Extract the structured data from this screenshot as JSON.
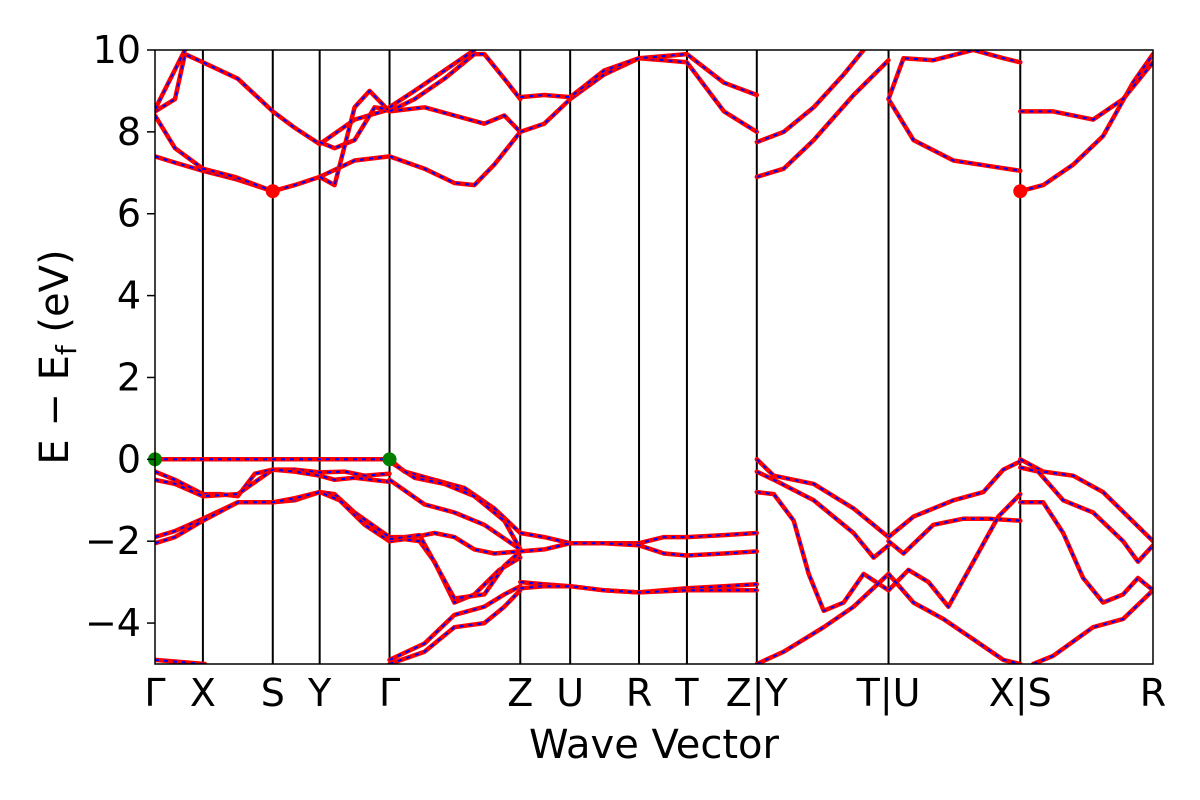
{
  "chart_data": {
    "type": "line",
    "title": "",
    "xlabel": "Wave Vector",
    "ylabel": "E − E",
    "ylabel_sub": "f",
    "ylabel_unit": " (eV)",
    "ylim": [
      -5,
      10
    ],
    "yticks": [
      -4,
      -2,
      0,
      2,
      4,
      6,
      8,
      10
    ],
    "ytick_labels": [
      "−4",
      "−2",
      "0",
      "2",
      "4",
      "6",
      "8",
      "10"
    ],
    "xlim": [
      0,
      1
    ],
    "kpoints": [
      {
        "label": "Γ",
        "pos": 0.0
      },
      {
        "label": "X",
        "pos": 0.048
      },
      {
        "label": "S",
        "pos": 0.118
      },
      {
        "label": "Y",
        "pos": 0.165
      },
      {
        "label": "Γ",
        "pos": 0.235
      },
      {
        "label": "Z",
        "pos": 0.366
      },
      {
        "label": "U",
        "pos": 0.416
      },
      {
        "label": "R",
        "pos": 0.485
      },
      {
        "label": "T",
        "pos": 0.533
      },
      {
        "label": "Z|Y",
        "pos": 0.603
      },
      {
        "label": "T|U",
        "pos": 0.735
      },
      {
        "label": "X|S",
        "pos": 0.867
      },
      {
        "label": "R",
        "pos": 1.0
      }
    ],
    "colors": {
      "band_outer": "#ff0000",
      "band_inner": "#0000ff",
      "vbm": "#008000",
      "cbm": "#ff0000",
      "kline": "#000000"
    },
    "markers": [
      {
        "name": "vbm",
        "x": 0.0,
        "y": 0.0
      },
      {
        "name": "vbm",
        "x": 0.235,
        "y": 0.0
      },
      {
        "name": "cbm",
        "x": 0.118,
        "y": 6.55
      },
      {
        "name": "cbm",
        "x": 0.867,
        "y": 6.55
      }
    ],
    "bands": [
      [
        [
          0,
          0
        ],
        [
          0.02,
          0
        ],
        [
          0.048,
          0
        ],
        [
          0.083,
          0
        ],
        [
          0.118,
          0
        ],
        [
          0.14,
          0
        ],
        [
          0.165,
          0
        ],
        [
          0.2,
          0
        ],
        [
          0.235,
          0
        ]
      ],
      [
        [
          0,
          -0.3
        ],
        [
          0.02,
          -0.5
        ],
        [
          0.048,
          -0.85
        ],
        [
          0.065,
          -0.85
        ],
        [
          0.083,
          -0.9
        ],
        [
          0.1,
          -0.35
        ],
        [
          0.118,
          -0.25
        ],
        [
          0.14,
          -0.25
        ],
        [
          0.165,
          -0.32
        ],
        [
          0.19,
          -0.3
        ],
        [
          0.21,
          -0.4
        ],
        [
          0.235,
          -0.35
        ]
      ],
      [
        [
          0,
          -0.5
        ],
        [
          0.02,
          -0.6
        ],
        [
          0.048,
          -0.9
        ],
        [
          0.083,
          -0.85
        ],
        [
          0.118,
          -0.25
        ],
        [
          0.14,
          -0.3
        ],
        [
          0.165,
          -0.4
        ],
        [
          0.18,
          -0.5
        ],
        [
          0.2,
          -0.45
        ],
        [
          0.235,
          -0.55
        ]
      ],
      [
        [
          0,
          -1.9
        ],
        [
          0.02,
          -1.75
        ],
        [
          0.048,
          -1.45
        ],
        [
          0.083,
          -1.05
        ],
        [
          0.118,
          -1.05
        ],
        [
          0.14,
          -1.0
        ],
        [
          0.165,
          -0.8
        ],
        [
          0.18,
          -0.85
        ],
        [
          0.2,
          -1.3
        ],
        [
          0.235,
          -1.9
        ]
      ],
      [
        [
          0,
          -2.05
        ],
        [
          0.02,
          -1.9
        ],
        [
          0.048,
          -1.5
        ],
        [
          0.083,
          -1.05
        ],
        [
          0.118,
          -1.05
        ],
        [
          0.14,
          -0.95
        ],
        [
          0.165,
          -0.8
        ],
        [
          0.185,
          -1.0
        ],
        [
          0.21,
          -1.6
        ],
        [
          0.235,
          -2.0
        ]
      ],
      [
        [
          0,
          -4.9
        ],
        [
          0.05,
          -5.0
        ]
      ],
      [
        [
          0.235,
          0
        ],
        [
          0.25,
          -0.3
        ],
        [
          0.28,
          -0.5
        ],
        [
          0.31,
          -0.7
        ],
        [
          0.34,
          -1.2
        ],
        [
          0.366,
          -1.8
        ]
      ],
      [
        [
          0.235,
          -0.05
        ],
        [
          0.26,
          -0.45
        ],
        [
          0.29,
          -0.6
        ],
        [
          0.32,
          -0.9
        ],
        [
          0.35,
          -1.5
        ],
        [
          0.366,
          -2.2
        ]
      ],
      [
        [
          0.235,
          -0.5
        ],
        [
          0.27,
          -1.1
        ],
        [
          0.3,
          -1.3
        ],
        [
          0.33,
          -1.6
        ],
        [
          0.366,
          -2.2
        ]
      ],
      [
        [
          0.235,
          -1.9
        ],
        [
          0.26,
          -1.9
        ],
        [
          0.28,
          -1.8
        ],
        [
          0.3,
          -1.9
        ],
        [
          0.32,
          -2.2
        ],
        [
          0.34,
          -2.3
        ],
        [
          0.366,
          -2.25
        ]
      ],
      [
        [
          0.235,
          -2.0
        ],
        [
          0.25,
          -1.95
        ],
        [
          0.265,
          -2.0
        ],
        [
          0.28,
          -2.5
        ],
        [
          0.3,
          -3.5
        ],
        [
          0.32,
          -3.3
        ],
        [
          0.345,
          -2.7
        ],
        [
          0.366,
          -2.4
        ]
      ],
      [
        [
          0.235,
          -1.95
        ],
        [
          0.265,
          -1.85
        ],
        [
          0.3,
          -3.4
        ],
        [
          0.33,
          -3.3
        ],
        [
          0.35,
          -2.6
        ],
        [
          0.366,
          -2.25
        ]
      ],
      [
        [
          0.235,
          -4.9
        ],
        [
          0.27,
          -4.5
        ],
        [
          0.3,
          -3.8
        ],
        [
          0.33,
          -3.6
        ],
        [
          0.35,
          -3.3
        ],
        [
          0.366,
          -3.1
        ]
      ],
      [
        [
          0.235,
          -5.0
        ],
        [
          0.27,
          -4.7
        ],
        [
          0.3,
          -4.1
        ],
        [
          0.33,
          -4.0
        ],
        [
          0.35,
          -3.6
        ],
        [
          0.366,
          -3.2
        ]
      ],
      [
        [
          0.366,
          -1.8
        ],
        [
          0.39,
          -1.9
        ],
        [
          0.416,
          -2.05
        ],
        [
          0.45,
          -2.05
        ],
        [
          0.485,
          -2.05
        ],
        [
          0.51,
          -1.9
        ],
        [
          0.533,
          -1.9
        ],
        [
          0.57,
          -1.85
        ],
        [
          0.603,
          -1.8
        ]
      ],
      [
        [
          0.366,
          -2.25
        ],
        [
          0.39,
          -2.2
        ],
        [
          0.416,
          -2.05
        ],
        [
          0.45,
          -2.05
        ],
        [
          0.485,
          -2.1
        ],
        [
          0.51,
          -2.3
        ],
        [
          0.533,
          -2.35
        ],
        [
          0.57,
          -2.3
        ],
        [
          0.603,
          -2.25
        ]
      ],
      [
        [
          0.366,
          -3.0
        ],
        [
          0.39,
          -3.05
        ],
        [
          0.416,
          -3.1
        ],
        [
          0.45,
          -3.2
        ],
        [
          0.485,
          -3.25
        ],
        [
          0.533,
          -3.15
        ],
        [
          0.57,
          -3.1
        ],
        [
          0.603,
          -3.05
        ]
      ],
      [
        [
          0.366,
          -3.15
        ],
        [
          0.39,
          -3.1
        ],
        [
          0.416,
          -3.1
        ],
        [
          0.45,
          -3.2
        ],
        [
          0.485,
          -3.25
        ],
        [
          0.533,
          -3.2
        ],
        [
          0.57,
          -3.2
        ],
        [
          0.603,
          -3.2
        ]
      ],
      [
        [
          0.603,
          0
        ],
        [
          0.62,
          -0.4
        ],
        [
          0.66,
          -0.6
        ],
        [
          0.7,
          -1.2
        ],
        [
          0.735,
          -1.9
        ]
      ],
      [
        [
          0.603,
          -0.3
        ],
        [
          0.62,
          -0.5
        ],
        [
          0.66,
          -1.0
        ],
        [
          0.7,
          -1.8
        ],
        [
          0.72,
          -2.4
        ],
        [
          0.735,
          -2.1
        ]
      ],
      [
        [
          0.603,
          -0.8
        ],
        [
          0.62,
          -0.85
        ],
        [
          0.64,
          -1.5
        ],
        [
          0.655,
          -2.8
        ],
        [
          0.67,
          -3.7
        ],
        [
          0.69,
          -3.5
        ],
        [
          0.71,
          -2.8
        ],
        [
          0.735,
          -3.2
        ]
      ],
      [
        [
          0.603,
          -5.0
        ],
        [
          0.63,
          -4.7
        ],
        [
          0.67,
          -4.1
        ],
        [
          0.7,
          -3.6
        ],
        [
          0.735,
          -2.8
        ]
      ],
      [
        [
          0.735,
          -1.9
        ],
        [
          0.76,
          -1.4
        ],
        [
          0.8,
          -1.0
        ],
        [
          0.83,
          -0.8
        ],
        [
          0.85,
          -0.25
        ],
        [
          0.867,
          -0.05
        ]
      ],
      [
        [
          0.735,
          -2.0
        ],
        [
          0.75,
          -2.3
        ],
        [
          0.78,
          -1.6
        ],
        [
          0.81,
          -1.45
        ],
        [
          0.835,
          -1.45
        ],
        [
          0.867,
          -1.5
        ]
      ],
      [
        [
          0.735,
          -3.2
        ],
        [
          0.755,
          -2.7
        ],
        [
          0.775,
          -3.0
        ],
        [
          0.795,
          -3.6
        ],
        [
          0.82,
          -2.5
        ],
        [
          0.845,
          -1.4
        ],
        [
          0.867,
          -0.85
        ]
      ],
      [
        [
          0.735,
          -2.8
        ],
        [
          0.76,
          -3.5
        ],
        [
          0.79,
          -3.9
        ],
        [
          0.82,
          -4.4
        ],
        [
          0.85,
          -4.9
        ],
        [
          0.867,
          -5.0
        ]
      ],
      [
        [
          0.867,
          0
        ],
        [
          0.89,
          -0.3
        ],
        [
          0.92,
          -0.4
        ],
        [
          0.95,
          -0.8
        ],
        [
          0.975,
          -1.4
        ],
        [
          1.0,
          -2.0
        ]
      ],
      [
        [
          0.867,
          -0.2
        ],
        [
          0.885,
          -0.3
        ],
        [
          0.91,
          -1.0
        ],
        [
          0.94,
          -1.3
        ],
        [
          0.97,
          -2.0
        ],
        [
          0.985,
          -2.5
        ],
        [
          1.0,
          -2.1
        ]
      ],
      [
        [
          0.867,
          -1.05
        ],
        [
          0.89,
          -1.05
        ],
        [
          0.91,
          -1.8
        ],
        [
          0.93,
          -2.9
        ],
        [
          0.95,
          -3.5
        ],
        [
          0.97,
          -3.3
        ],
        [
          0.985,
          -2.9
        ],
        [
          1.0,
          -3.2
        ]
      ],
      [
        [
          0.88,
          -5.0
        ],
        [
          0.9,
          -4.8
        ],
        [
          0.94,
          -4.1
        ],
        [
          0.97,
          -3.9
        ],
        [
          1.0,
          -3.2
        ]
      ],
      [
        [
          0,
          7.4
        ],
        [
          0.02,
          7.25
        ],
        [
          0.048,
          7.05
        ],
        [
          0.08,
          6.85
        ],
        [
          0.118,
          6.55
        ],
        [
          0.14,
          6.7
        ],
        [
          0.165,
          6.9
        ],
        [
          0.2,
          7.3
        ],
        [
          0.235,
          7.4
        ]
      ],
      [
        [
          0,
          8.5
        ],
        [
          0.02,
          8.8
        ],
        [
          0.03,
          9.9
        ],
        [
          0.048,
          9.7
        ],
        [
          0.083,
          9.3
        ],
        [
          0.118,
          8.5
        ],
        [
          0.14,
          8.1
        ],
        [
          0.165,
          7.7
        ],
        [
          0.2,
          8.3
        ],
        [
          0.235,
          8.55
        ]
      ],
      [
        [
          0,
          8.4
        ],
        [
          0.02,
          7.6
        ],
        [
          0.048,
          7.1
        ],
        [
          0.08,
          6.9
        ],
        [
          0.118,
          6.55
        ]
      ],
      [
        [
          0,
          8.55
        ],
        [
          0.03,
          10.0
        ]
      ],
      [
        [
          0.165,
          7.75
        ],
        [
          0.18,
          7.6
        ],
        [
          0.2,
          7.8
        ],
        [
          0.22,
          8.6
        ],
        [
          0.235,
          8.55
        ]
      ],
      [
        [
          0.165,
          6.9
        ],
        [
          0.18,
          6.7
        ],
        [
          0.2,
          8.6
        ],
        [
          0.215,
          9.0
        ],
        [
          0.235,
          8.5
        ]
      ],
      [
        [
          0.235,
          7.4
        ],
        [
          0.27,
          7.1
        ],
        [
          0.3,
          6.75
        ],
        [
          0.32,
          6.7
        ],
        [
          0.34,
          7.2
        ],
        [
          0.366,
          8.0
        ]
      ],
      [
        [
          0.235,
          8.5
        ],
        [
          0.27,
          8.6
        ],
        [
          0.3,
          8.4
        ],
        [
          0.33,
          8.2
        ],
        [
          0.35,
          8.4
        ],
        [
          0.366,
          8.0
        ]
      ],
      [
        [
          0.235,
          8.6
        ],
        [
          0.26,
          9.0
        ],
        [
          0.29,
          9.5
        ],
        [
          0.32,
          10.0
        ]
      ],
      [
        [
          0.235,
          8.5
        ],
        [
          0.26,
          8.8
        ],
        [
          0.29,
          9.3
        ],
        [
          0.32,
          9.9
        ],
        [
          0.33,
          9.9
        ],
        [
          0.35,
          9.3
        ],
        [
          0.366,
          8.8
        ]
      ],
      [
        [
          0.366,
          8.0
        ],
        [
          0.39,
          8.2
        ],
        [
          0.416,
          8.8
        ],
        [
          0.45,
          9.4
        ],
        [
          0.485,
          9.8
        ],
        [
          0.51,
          9.75
        ],
        [
          0.533,
          9.7
        ],
        [
          0.57,
          8.5
        ],
        [
          0.603,
          8.0
        ]
      ],
      [
        [
          0.366,
          8.85
        ],
        [
          0.39,
          8.9
        ],
        [
          0.416,
          8.85
        ],
        [
          0.45,
          9.5
        ],
        [
          0.485,
          9.8
        ],
        [
          0.51,
          9.85
        ],
        [
          0.533,
          9.9
        ],
        [
          0.57,
          9.2
        ],
        [
          0.603,
          8.9
        ]
      ],
      [
        [
          0.603,
          6.9
        ],
        [
          0.63,
          7.1
        ],
        [
          0.66,
          7.8
        ],
        [
          0.7,
          8.9
        ],
        [
          0.735,
          9.75
        ]
      ],
      [
        [
          0.603,
          7.75
        ],
        [
          0.63,
          8.0
        ],
        [
          0.66,
          8.6
        ],
        [
          0.69,
          9.4
        ],
        [
          0.71,
          10.0
        ]
      ],
      [
        [
          0.735,
          8.8
        ],
        [
          0.76,
          7.8
        ],
        [
          0.8,
          7.3
        ],
        [
          0.84,
          7.15
        ],
        [
          0.867,
          7.05
        ]
      ],
      [
        [
          0.735,
          8.8
        ],
        [
          0.75,
          9.8
        ],
        [
          0.78,
          9.75
        ],
        [
          0.82,
          10.0
        ],
        [
          0.85,
          9.8
        ],
        [
          0.867,
          9.7
        ]
      ],
      [
        [
          0.867,
          6.55
        ],
        [
          0.89,
          6.7
        ],
        [
          0.92,
          7.2
        ],
        [
          0.95,
          7.9
        ],
        [
          0.98,
          9.2
        ],
        [
          1.0,
          9.9
        ]
      ],
      [
        [
          0.867,
          8.5
        ],
        [
          0.9,
          8.5
        ],
        [
          0.94,
          8.3
        ],
        [
          0.97,
          8.8
        ],
        [
          1.0,
          9.7
        ]
      ]
    ]
  }
}
